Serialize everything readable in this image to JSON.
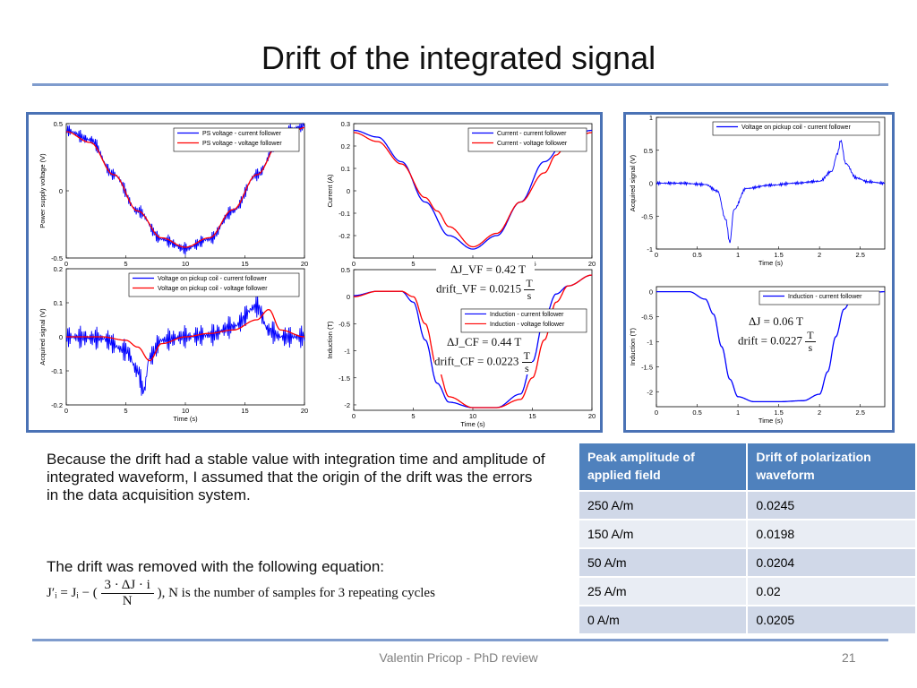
{
  "slide": {
    "title": "Drift of the integrated signal",
    "paragraph1": "Because the drift had a stable value with integration time and amplitude of integrated waveform, I assumed that the origin of the drift was the errors in the data acquisition system.",
    "paragraph2": "The drift was removed with the following equation:",
    "equation_lhs": "J′ᵢ = Jᵢ − (",
    "equation_num": "3 · ΔJ · i",
    "equation_den": "N",
    "equation_rhs": "), N is the number of samples for 3 repeating cycles",
    "footer": "Valentin Pricop - PhD review",
    "page_number": "21"
  },
  "annotations": {
    "vf_dj": "ΔJ_VF = 0.42 T",
    "vf_drift": "drift_VF = 0.0215",
    "cf_dj": "ΔJ_CF = 0.44 T",
    "cf_drift": "drift_CF = 0.0223",
    "right_dj": "ΔJ = 0.06 T",
    "right_drift": "drift = 0.0227",
    "unit_num": "T",
    "unit_den": "s"
  },
  "table": {
    "headers": [
      "Peak amplitude of applied field",
      "Drift of polarization waveform"
    ],
    "rows": [
      [
        "250 A/m",
        "0.0245"
      ],
      [
        "150 A/m",
        "0.0198"
      ],
      [
        "50 A/m",
        "0.0204"
      ],
      [
        "25 A/m",
        "0.02"
      ],
      [
        "0 A/m",
        "0.0205"
      ]
    ]
  },
  "colors": {
    "blue": "#0000ff",
    "red": "#ff0000",
    "frame": "#4a72b5",
    "table_header": "#4f81bd"
  },
  "chart_data": [
    {
      "id": "ps-voltage",
      "type": "line",
      "xlim": [
        0,
        20
      ],
      "ylim": [
        -0.5,
        0.5
      ],
      "xticks": [
        0,
        5,
        10,
        15,
        20
      ],
      "yticks": [
        -0.5,
        0,
        0.5
      ],
      "xlabel": "",
      "ylabel": "Power supply voltage (V)",
      "legend_position": "top-right",
      "series": [
        {
          "name": "PS voltage - current follower",
          "color": "#0000ff",
          "noise": 0.05,
          "x": [
            0,
            2,
            4,
            6,
            8,
            10,
            12,
            14,
            16,
            18,
            19,
            20
          ],
          "y": [
            0.45,
            0.38,
            0.12,
            -0.15,
            -0.36,
            -0.43,
            -0.36,
            -0.15,
            0.12,
            0.4,
            0.46,
            0.49
          ]
        },
        {
          "name": "PS voltage - voltage follower",
          "color": "#ff0000",
          "noise": 0,
          "x": [
            0,
            2,
            4,
            6,
            8,
            10,
            12,
            14,
            16,
            18,
            19,
            20
          ],
          "y": [
            0.44,
            0.36,
            0.12,
            -0.15,
            -0.35,
            -0.42,
            -0.35,
            -0.14,
            0.12,
            0.38,
            0.44,
            0.47
          ]
        }
      ]
    },
    {
      "id": "current",
      "type": "line",
      "xlim": [
        0,
        20
      ],
      "ylim": [
        -0.3,
        0.3
      ],
      "xticks": [
        0,
        5,
        10,
        15,
        20
      ],
      "yticks": [
        -0.2,
        -0.1,
        0,
        0.1,
        0.2,
        0.3
      ],
      "xlabel": "",
      "ylabel": "Current (A)",
      "legend_position": "top-right",
      "series": [
        {
          "name": "Current - current follower",
          "color": "#0000ff",
          "noise": 0,
          "x": [
            0,
            2,
            4,
            6,
            8,
            10,
            12,
            14,
            16,
            18,
            20
          ],
          "y": [
            0.27,
            0.24,
            0.13,
            -0.05,
            -0.2,
            -0.26,
            -0.2,
            -0.05,
            0.13,
            0.24,
            0.27
          ]
        },
        {
          "name": "Current - voltage follower",
          "color": "#ff0000",
          "noise": 0,
          "x": [
            0,
            2,
            4,
            6,
            7,
            8,
            10,
            12,
            14,
            16,
            17,
            18,
            20
          ],
          "y": [
            0.26,
            0.22,
            0.12,
            -0.03,
            -0.09,
            -0.16,
            -0.25,
            -0.19,
            -0.05,
            0.08,
            0.16,
            0.22,
            0.26
          ]
        }
      ]
    },
    {
      "id": "pickup-voltage",
      "type": "line",
      "xlim": [
        0,
        20
      ],
      "ylim": [
        -0.2,
        0.2
      ],
      "xticks": [
        0,
        5,
        10,
        15,
        20
      ],
      "yticks": [
        -0.2,
        -0.1,
        0,
        0.1,
        0.2
      ],
      "xlabel": "Time (s)",
      "ylabel": "Acquired signal (V)",
      "legend_position": "top-right",
      "series": [
        {
          "name": "Voltage on pickup coil - current follower",
          "color": "#0000ff",
          "noise": 0.035,
          "x": [
            0,
            3,
            5,
            6,
            6.5,
            7,
            8,
            10,
            12,
            14,
            16,
            17,
            18,
            20
          ],
          "y": [
            0,
            -0.005,
            -0.04,
            -0.1,
            -0.16,
            -0.06,
            -0.01,
            0.0,
            0.005,
            0.03,
            0.09,
            0.02,
            0.0,
            0.0
          ]
        },
        {
          "name": "Voltage on pickup coil - voltage follower",
          "color": "#ff0000",
          "noise": 0,
          "x": [
            0,
            3,
            5,
            6,
            7,
            8,
            10,
            12,
            14,
            16,
            17,
            18,
            20
          ],
          "y": [
            0,
            0,
            -0.01,
            -0.03,
            -0.07,
            -0.02,
            0.0,
            0.01,
            0.02,
            0.05,
            0.08,
            0.02,
            0.0
          ]
        }
      ]
    },
    {
      "id": "induction",
      "type": "line",
      "xlim": [
        0,
        20
      ],
      "ylim": [
        -2.1,
        0.5
      ],
      "xticks": [
        0,
        5,
        10,
        15,
        20
      ],
      "yticks": [
        -2,
        -1.5,
        -1,
        -0.5,
        0,
        0.5
      ],
      "xlabel": "Time (s)",
      "ylabel": "Induction (T)",
      "legend_position": "center-right",
      "series": [
        {
          "name": "Induction - current follower",
          "color": "#0000ff",
          "noise": 0,
          "x": [
            0,
            2,
            4,
            5,
            6,
            7,
            8,
            10,
            12,
            14,
            15,
            16,
            17,
            18,
            20
          ],
          "y": [
            0.02,
            0.1,
            0.1,
            -0.1,
            -0.8,
            -1.6,
            -1.95,
            -2.05,
            -2.05,
            -1.8,
            -1.2,
            -0.4,
            0.05,
            0.2,
            0.4
          ]
        },
        {
          "name": "Induction - voltage follower",
          "color": "#ff0000",
          "noise": 0,
          "x": [
            0,
            2,
            4,
            5,
            6,
            7,
            8,
            10,
            12,
            14,
            15,
            16,
            17,
            18,
            20
          ],
          "y": [
            0.0,
            0.1,
            0.1,
            0.0,
            -0.5,
            -1.3,
            -1.85,
            -2.05,
            -2.05,
            -1.9,
            -1.5,
            -0.8,
            -0.1,
            0.2,
            0.4
          ]
        }
      ]
    },
    {
      "id": "pickup-right",
      "type": "line",
      "xlim": [
        0,
        2.8
      ],
      "ylim": [
        -1,
        1
      ],
      "xticks": [
        0,
        0.5,
        1,
        1.5,
        2,
        2.5
      ],
      "yticks": [
        -1,
        -0.5,
        0,
        0.5,
        1
      ],
      "xlabel": "Time (s)",
      "ylabel": "Acquired signal (V)",
      "legend_position": "top-right",
      "series": [
        {
          "name": "Voltage on pickup coil - current follower",
          "color": "#0000ff",
          "noise": 0.025,
          "x": [
            0,
            0.3,
            0.6,
            0.75,
            0.85,
            0.9,
            0.95,
            1.1,
            1.4,
            1.7,
            2.0,
            2.15,
            2.22,
            2.26,
            2.32,
            2.45,
            2.6,
            2.8
          ],
          "y": [
            0,
            0,
            -0.02,
            -0.12,
            -0.55,
            -0.9,
            -0.4,
            -0.08,
            -0.03,
            0,
            0.03,
            0.18,
            0.45,
            0.65,
            0.3,
            0.08,
            0.02,
            0
          ]
        }
      ]
    },
    {
      "id": "induction-right",
      "type": "line",
      "xlim": [
        0,
        2.8
      ],
      "ylim": [
        -2.3,
        0.1
      ],
      "xticks": [
        0,
        0.5,
        1,
        1.5,
        2,
        2.5
      ],
      "yticks": [
        -2,
        -1.5,
        -1,
        -0.5,
        0
      ],
      "xlabel": "Time (s)",
      "ylabel": "Induction (T)",
      "legend_position": "top-right",
      "series": [
        {
          "name": "Induction - current follower",
          "color": "#0000ff",
          "noise": 0,
          "x": [
            0,
            0.4,
            0.6,
            0.7,
            0.8,
            0.9,
            1.0,
            1.2,
            1.5,
            1.8,
            2.0,
            2.1,
            2.2,
            2.3,
            2.4,
            2.6,
            2.8
          ],
          "y": [
            0,
            0,
            -0.15,
            -0.45,
            -1.1,
            -1.75,
            -2.1,
            -2.2,
            -2.2,
            -2.18,
            -2.05,
            -1.6,
            -0.9,
            -0.35,
            -0.12,
            -0.03,
            0
          ]
        }
      ]
    }
  ]
}
